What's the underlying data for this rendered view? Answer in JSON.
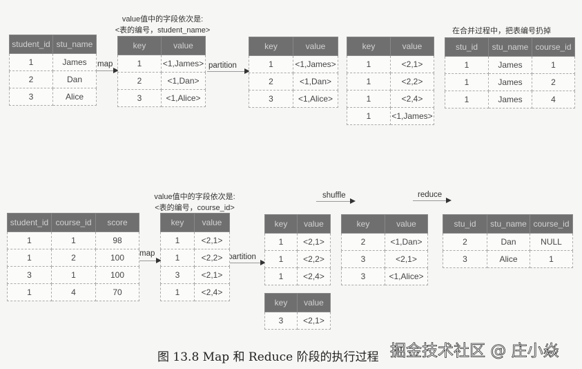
{
  "notes": {
    "top_value_fields_line1": "value值中的字段依次是:",
    "top_value_fields_line2": "<表的编号，student_name>",
    "merge_note": "在合并过程中，把表编号扔掉",
    "bottom_value_fields_line1": "value值中的字段依次是:",
    "bottom_value_fields_line2": "<表的编号，course_id>"
  },
  "arrows": {
    "top_map": "map",
    "top_partition": "partition",
    "bottom_map": "map",
    "bottom_partition": "partition",
    "shuffle": "shuffle",
    "reduce": "reduce"
  },
  "tables": {
    "students": {
      "headers": [
        "student_id",
        "stu_name"
      ],
      "rows": [
        [
          "1",
          "James"
        ],
        [
          "2",
          "Dan"
        ],
        [
          "3",
          "Alice"
        ]
      ]
    },
    "students_mapped": {
      "headers": [
        "key",
        "value"
      ],
      "rows": [
        [
          "1",
          "<1,James>"
        ],
        [
          "2",
          "<1,Dan>"
        ],
        [
          "3",
          "<1,Alice>"
        ]
      ]
    },
    "students_partitioned": {
      "headers": [
        "key",
        "value"
      ],
      "rows": [
        [
          "1",
          "<1,James>"
        ],
        [
          "2",
          "<1,Dan>"
        ],
        [
          "3",
          "<1,Alice>"
        ]
      ]
    },
    "shuffled_key1": {
      "headers": [
        "key",
        "value"
      ],
      "rows": [
        [
          "1",
          "<2,1>"
        ],
        [
          "1",
          "<2,2>"
        ],
        [
          "1",
          "<2,4>"
        ],
        [
          "1",
          "<1,James>"
        ]
      ]
    },
    "reduced_key1": {
      "headers": [
        "stu_id",
        "stu_name",
        "course_id"
      ],
      "rows": [
        [
          "1",
          "James",
          "1"
        ],
        [
          "1",
          "James",
          "2"
        ],
        [
          "1",
          "James",
          "4"
        ]
      ]
    },
    "scores": {
      "headers": [
        "student_id",
        "course_id",
        "score"
      ],
      "rows": [
        [
          "1",
          "1",
          "98"
        ],
        [
          "1",
          "2",
          "100"
        ],
        [
          "3",
          "1",
          "100"
        ],
        [
          "1",
          "4",
          "70"
        ]
      ]
    },
    "scores_mapped": {
      "headers": [
        "key",
        "value"
      ],
      "rows": [
        [
          "1",
          "<2,1>"
        ],
        [
          "1",
          "<2,2>"
        ],
        [
          "3",
          "<2,1>"
        ],
        [
          "1",
          "<2,4>"
        ]
      ]
    },
    "scores_partition_a": {
      "headers": [
        "key",
        "value"
      ],
      "rows": [
        [
          "1",
          "<2,1>"
        ],
        [
          "1",
          "<2,2>"
        ],
        [
          "1",
          "<2,4>"
        ]
      ]
    },
    "scores_partition_b": {
      "headers": [
        "key",
        "value"
      ],
      "rows": [
        [
          "3",
          "<2,1>"
        ]
      ]
    },
    "shuffled_key2_3": {
      "headers": [
        "key",
        "value"
      ],
      "rows": [
        [
          "2",
          "<1,Dan>"
        ],
        [
          "3",
          "<2,1>"
        ],
        [
          "3",
          "<1,Alice>"
        ]
      ]
    },
    "reduced_key2_3": {
      "headers": [
        "stu_id",
        "stu_name",
        "course_id"
      ],
      "rows": [
        [
          "2",
          "Dan",
          "NULL"
        ],
        [
          "3",
          "Alice",
          "1"
        ]
      ]
    }
  },
  "caption": "图 13.8   Map 和 Reduce 阶段的执行过程",
  "watermark": "掘金技术社区 @ 庄小焱"
}
